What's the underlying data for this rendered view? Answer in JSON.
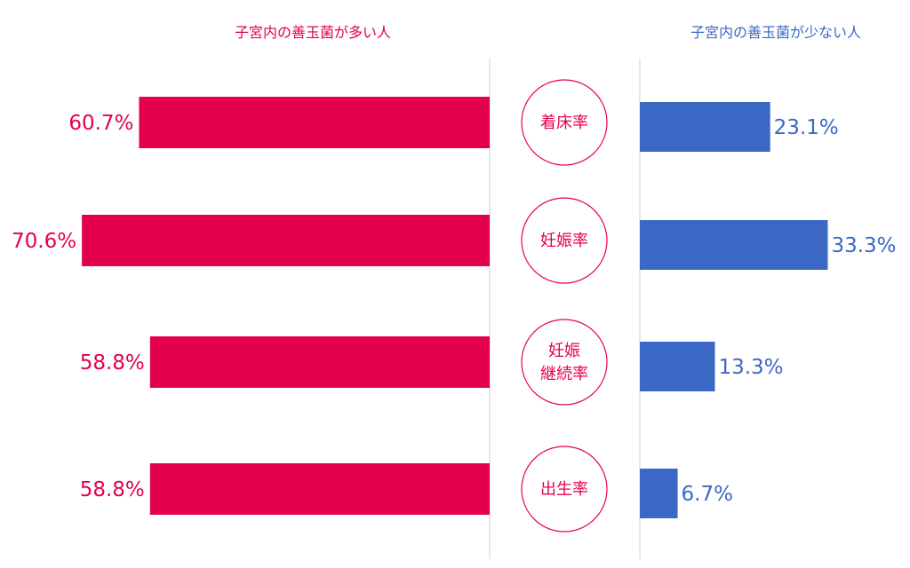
{
  "chart_data": {
    "type": "bar",
    "orientation": "horizontal-butterfly",
    "categories": [
      "着床率",
      "妊娠率",
      "妊娠継続率",
      "出生率"
    ],
    "category_lines": [
      [
        "着床率"
      ],
      [
        "妊娠率"
      ],
      [
        "妊娠",
        "継続率"
      ],
      [
        "出生率"
      ]
    ],
    "series": [
      {
        "name": "子宮内の善玉菌が多い人",
        "side": "left",
        "color": "#e5004f",
        "values": [
          60.7,
          70.6,
          58.8,
          58.8
        ],
        "labels": [
          "60.7%",
          "70.6%",
          "58.8%",
          "58.8%"
        ]
      },
      {
        "name": "子宮内の善玉菌が少ない人",
        "side": "right",
        "color": "#3a68c4",
        "values": [
          23.1,
          33.3,
          13.3,
          6.7
        ],
        "labels": [
          "23.1%",
          "33.3%",
          "13.3%",
          "6.7%"
        ]
      }
    ],
    "unit": "%",
    "category_circle_color": "#e5004f"
  }
}
